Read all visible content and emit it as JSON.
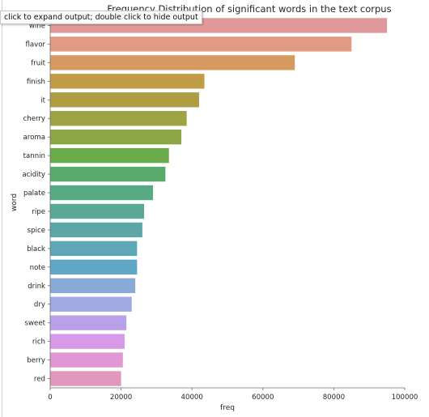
{
  "output_tooltip": "click to expand output; double click to hide output",
  "chart_data": {
    "type": "bar",
    "orientation": "horizontal",
    "title": "Frequency Distribution of significant words in the text corpus",
    "xlabel": "freq",
    "ylabel": "word",
    "xlim": [
      0,
      100000
    ],
    "xticks": [
      0,
      20000,
      40000,
      60000,
      80000,
      100000
    ],
    "grid": false,
    "categories": [
      "wine",
      "flavor",
      "fruit",
      "finish",
      "it",
      "cherry",
      "aroma",
      "tannin",
      "acidity",
      "palate",
      "ripe",
      "spice",
      "black",
      "note",
      "drink",
      "dry",
      "sweet",
      "rich",
      "berry",
      "red"
    ],
    "values": [
      95000,
      85000,
      69000,
      43500,
      42000,
      38500,
      37000,
      33500,
      32500,
      29000,
      26500,
      26000,
      24500,
      24500,
      24000,
      23000,
      21500,
      21000,
      20500,
      20000
    ],
    "colors": [
      "#e0999a",
      "#e29a84",
      "#d69a61",
      "#c29d48",
      "#af9d44",
      "#9fa145",
      "#8aa646",
      "#6aab4b",
      "#5aab6b",
      "#58aa85",
      "#5aa997",
      "#5ca7a5",
      "#5ea7b6",
      "#5fa7c7",
      "#88aad7",
      "#a1a9e3",
      "#b8a1e8",
      "#d69ae6",
      "#e097d4",
      "#e099bd"
    ]
  }
}
